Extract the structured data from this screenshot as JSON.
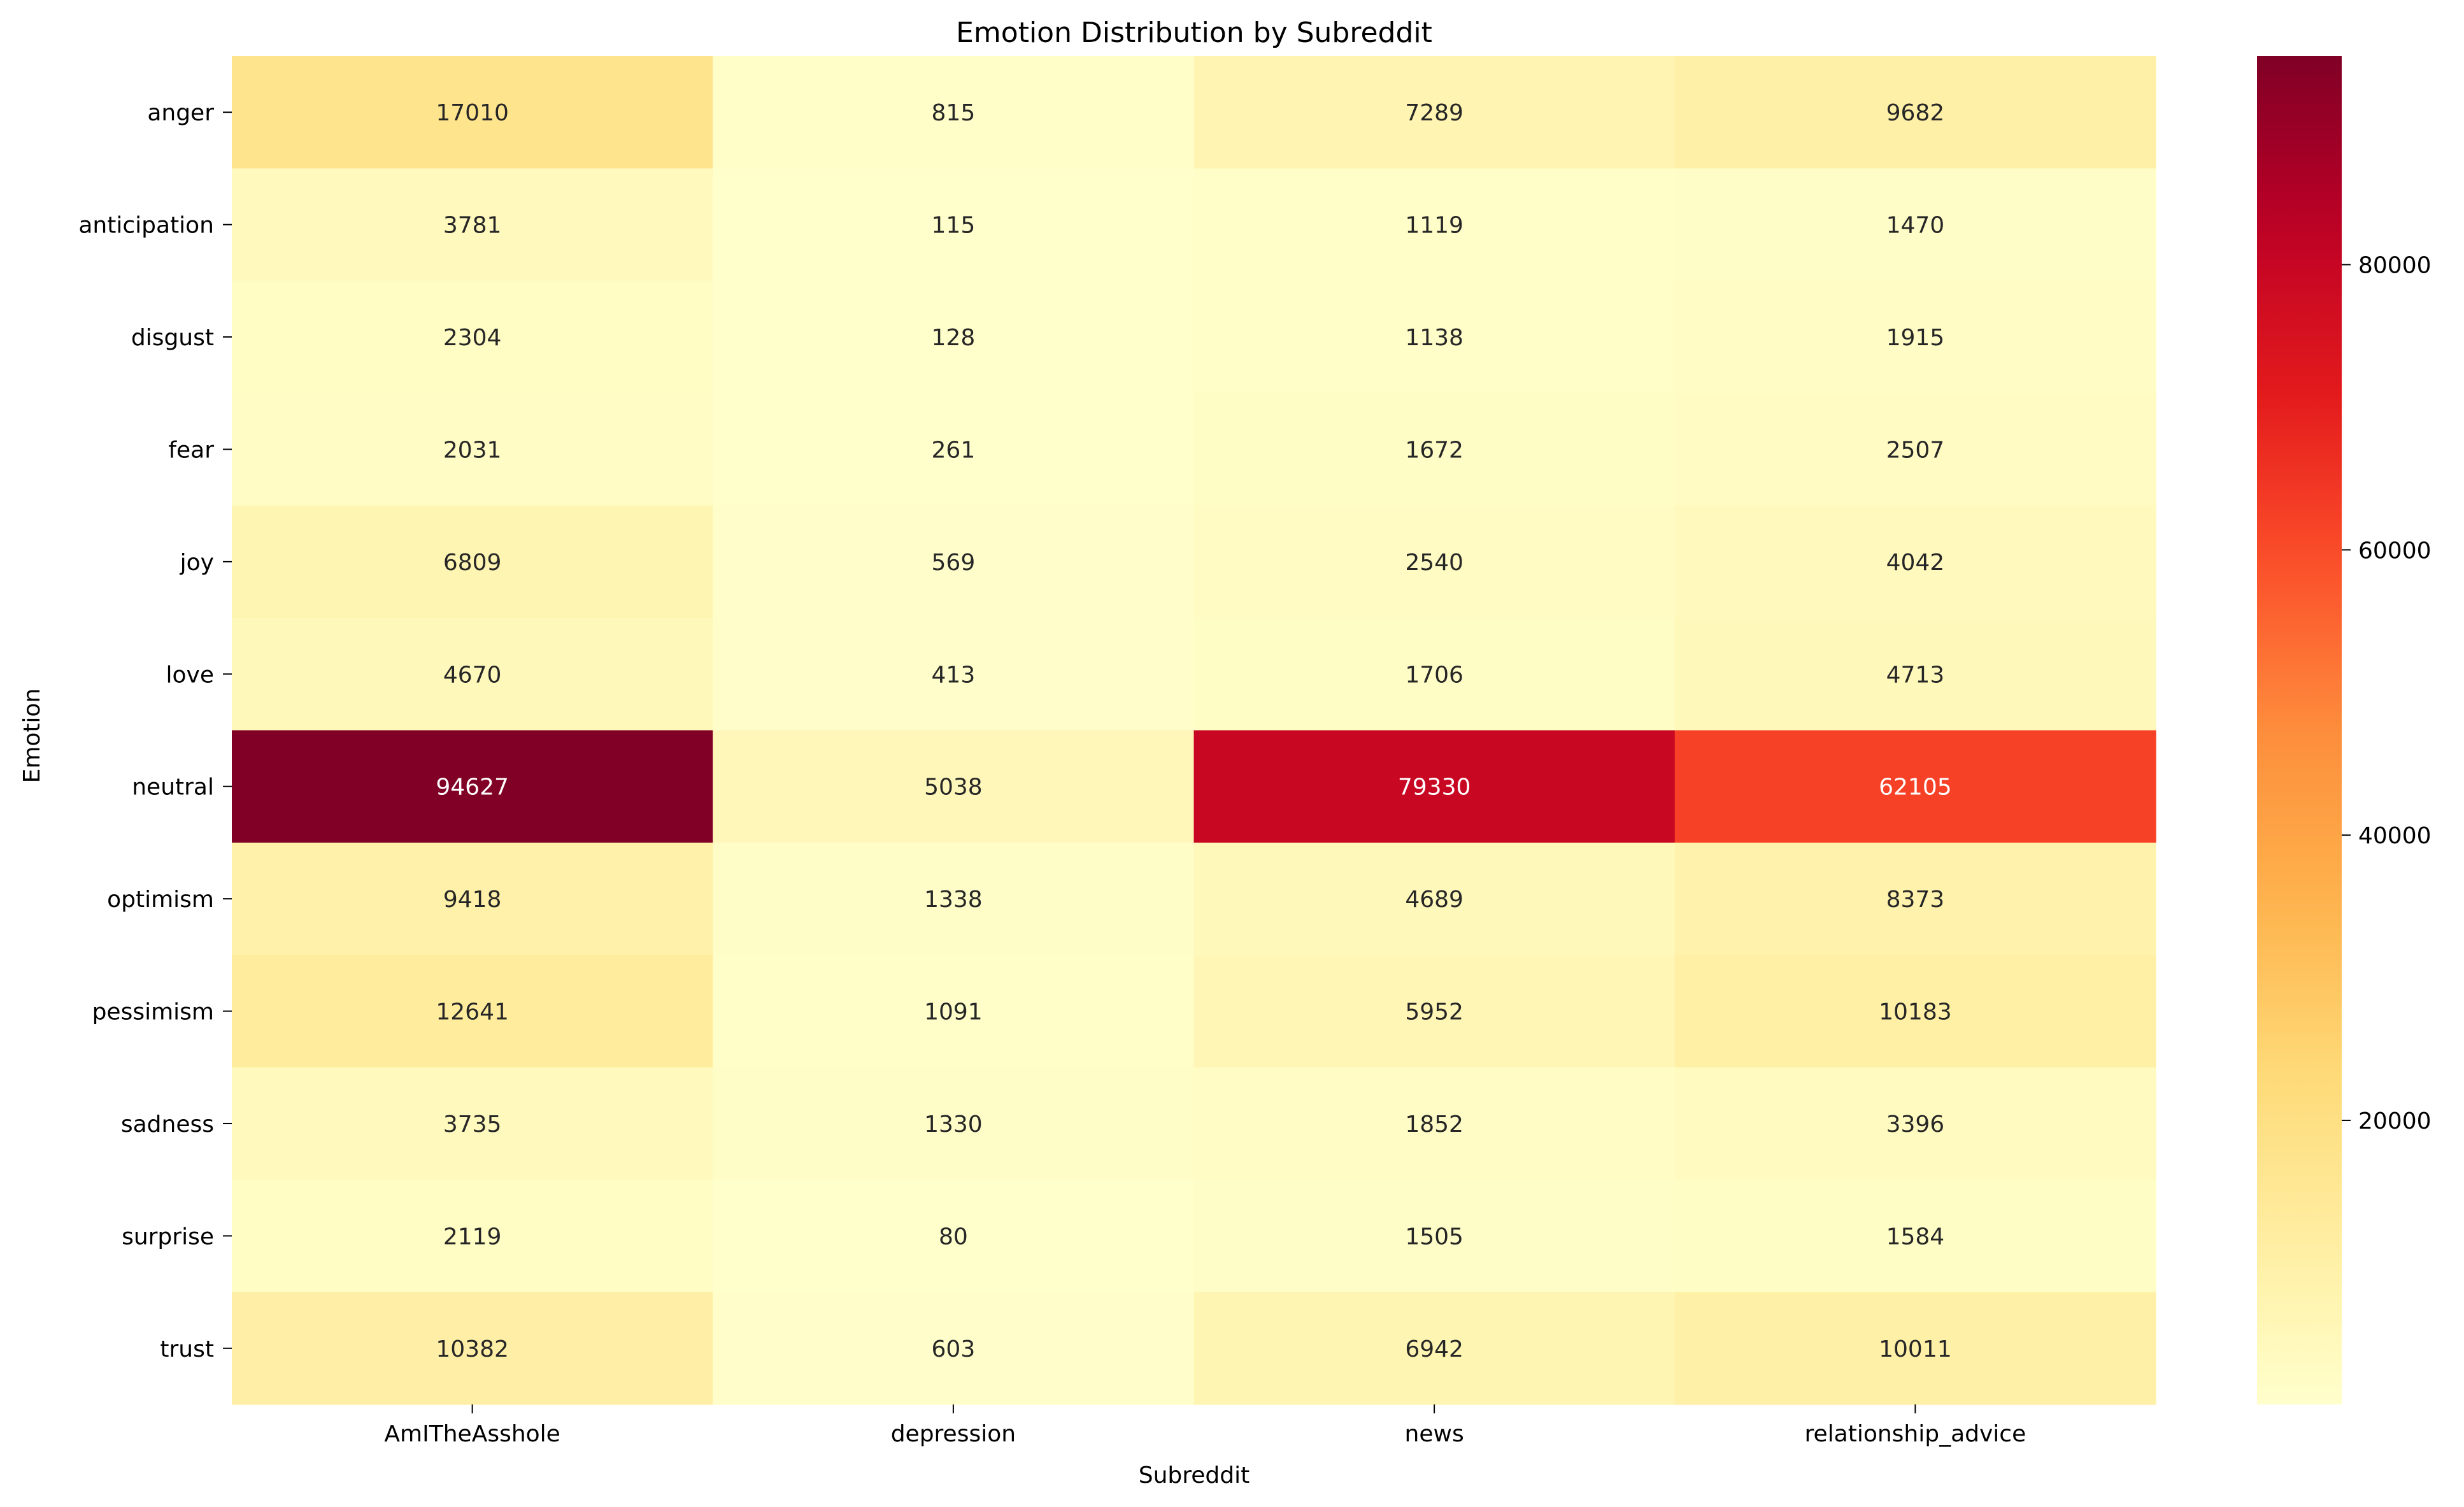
{
  "chart_data": {
    "type": "heatmap",
    "title": "Emotion Distribution by Subreddit",
    "xlabel": "Subreddit",
    "ylabel": "Emotion",
    "x_categories": [
      "AmITheAsshole",
      "depression",
      "news",
      "relationship_advice"
    ],
    "y_categories": [
      "anger",
      "anticipation",
      "disgust",
      "fear",
      "joy",
      "love",
      "neutral",
      "optimism",
      "pessimism",
      "sadness",
      "surprise",
      "trust"
    ],
    "values": [
      [
        17010,
        815,
        7289,
        9682
      ],
      [
        3781,
        115,
        1119,
        1470
      ],
      [
        2304,
        128,
        1138,
        1915
      ],
      [
        2031,
        261,
        1672,
        2507
      ],
      [
        6809,
        569,
        2540,
        4042
      ],
      [
        4670,
        413,
        1706,
        4713
      ],
      [
        94627,
        5038,
        79330,
        62105
      ],
      [
        9418,
        1338,
        4689,
        8373
      ],
      [
        12641,
        1091,
        5952,
        10183
      ],
      [
        3735,
        1330,
        1852,
        3396
      ],
      [
        2119,
        80,
        1505,
        1584
      ],
      [
        10382,
        603,
        6942,
        10011
      ]
    ],
    "colormap": "YlOrRd",
    "colorbar": {
      "min": 80,
      "max": 94627,
      "ticks": [
        20000,
        40000,
        60000,
        80000
      ]
    },
    "annotations": true,
    "grid": false
  }
}
